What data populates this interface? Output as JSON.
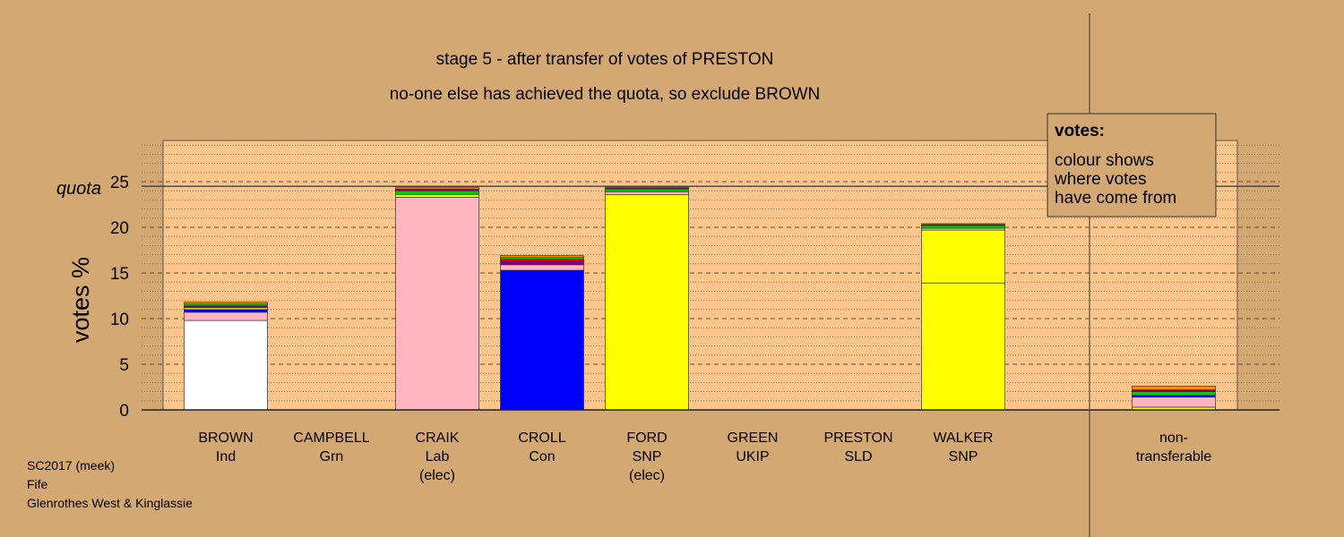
{
  "chart_data": {
    "type": "bar",
    "title": "stage 5 - after transfer of votes of PRESTON",
    "subtitle": "no-one else has achieved the quota, so exclude BROWN",
    "ylabel": "votes %",
    "ylim": [
      0,
      30
    ],
    "yticks": [
      0,
      5,
      10,
      15,
      20,
      25
    ],
    "quota": 24.5,
    "quota_label": "quota",
    "grid": true,
    "legend": {
      "title": "votes:",
      "lines": [
        "colour shows",
        "where votes",
        "have come from"
      ]
    },
    "candidates": [
      {
        "name": "BROWN",
        "party": "Ind",
        "status": "",
        "segments": [
          {
            "color": "#FFFFFF",
            "value": 9.8
          },
          {
            "color": "#FFB6C1",
            "value": 0.9
          },
          {
            "color": "#0000FF",
            "value": 0.3
          },
          {
            "color": "#FFFF00",
            "value": 0.2
          },
          {
            "color": "#800080",
            "value": 0.2
          },
          {
            "color": "#00CC00",
            "value": 0.2
          },
          {
            "color": "#FF8C00",
            "value": 0.2
          }
        ]
      },
      {
        "name": "CAMPBELL",
        "party": "Grn",
        "status": "",
        "segments": []
      },
      {
        "name": "CRAIK",
        "party": "Lab",
        "status": "(elec)",
        "segments": [
          {
            "color": "#FFB6C1",
            "value": 23.3
          },
          {
            "color": "#FFFF00",
            "value": 0.3
          },
          {
            "color": "#00CC00",
            "value": 0.4
          },
          {
            "color": "#800080",
            "value": 0.2
          },
          {
            "color": "#FF8C00",
            "value": 0.2
          }
        ]
      },
      {
        "name": "CROLL",
        "party": "Con",
        "status": "",
        "segments": [
          {
            "color": "#0000FF",
            "value": 15.3
          },
          {
            "color": "#FFB6C1",
            "value": 0.6
          },
          {
            "color": "#800080",
            "value": 0.4
          },
          {
            "color": "#FF0000",
            "value": 0.2
          },
          {
            "color": "#00CC00",
            "value": 0.2
          },
          {
            "color": "#FF8C00",
            "value": 0.2
          }
        ]
      },
      {
        "name": "FORD",
        "party": "SNP",
        "status": "(elec)",
        "segments": [
          {
            "color": "#FFFF00",
            "value": 23.6
          },
          {
            "color": "#FFB6C1",
            "value": 0.3
          },
          {
            "color": "#00CC00",
            "value": 0.3
          },
          {
            "color": "#800080",
            "value": 0.1
          },
          {
            "color": "#FF8C00",
            "value": 0.1
          }
        ]
      },
      {
        "name": "GREEN",
        "party": "UKIP",
        "status": "",
        "segments": []
      },
      {
        "name": "PRESTON",
        "party": "SLD",
        "status": "",
        "segments": []
      },
      {
        "name": "WALKER",
        "party": "SNP",
        "status": "",
        "segments": [
          {
            "color": "#FFFF00",
            "value": 13.9
          },
          {
            "color": "#FFFF00",
            "value": 5.8
          },
          {
            "color": "#FFB6C1",
            "value": 0.2
          },
          {
            "color": "#00CC00",
            "value": 0.3
          },
          {
            "color": "#800080",
            "value": 0.1
          },
          {
            "color": "#FF8C00",
            "value": 0.1
          }
        ]
      }
    ],
    "nontransferable": {
      "name": "non-",
      "party": "transferable",
      "segments": [
        {
          "color": "#FFFF00",
          "value": 0.3
        },
        {
          "color": "#FFB6C1",
          "value": 1.1
        },
        {
          "color": "#0000FF",
          "value": 0.2
        },
        {
          "color": "#00CC00",
          "value": 0.4
        },
        {
          "color": "#800080",
          "value": 0.2
        },
        {
          "color": "#FF8C00",
          "value": 0.4
        }
      ]
    }
  },
  "footer": {
    "line1": "SC2017 (meek)",
    "line2": "Fife",
    "line3": "Glenrothes West & Kinglassie"
  },
  "colors": {
    "background": "#D4A873",
    "plot_area": "#FCC58C"
  }
}
